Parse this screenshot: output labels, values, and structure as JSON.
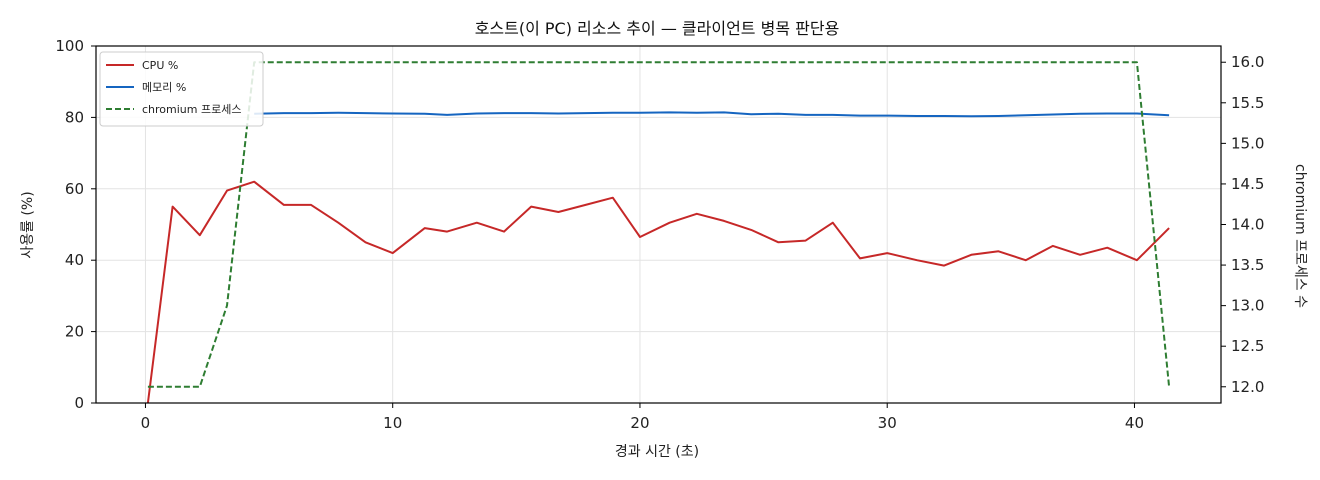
{
  "chart_data": {
    "type": "line",
    "title": "호스트(이 PC) 리소스 추이 — 클라이언트 병목 판단용",
    "xlabel": "경과 시간 (초)",
    "ylabel": "사용률 (%)",
    "y2label": "chromium 프로세스 수",
    "xlim": [
      -2,
      43.5
    ],
    "ylim": [
      0,
      100
    ],
    "y2lim": [
      11.8,
      16.2
    ],
    "xticks": [
      0,
      10,
      20,
      30,
      40
    ],
    "yticks": [
      0,
      20,
      40,
      60,
      80,
      100
    ],
    "y2ticks": [
      12.0,
      12.5,
      13.0,
      13.5,
      14.0,
      14.5,
      15.0,
      15.5,
      16.0
    ],
    "grid": true,
    "legend_position": "top-left",
    "series": [
      {
        "name": "CPU %",
        "axis": "left",
        "color": "#c62828",
        "dash": "solid",
        "x": [
          0.1,
          1.1,
          2.2,
          3.3,
          4.4,
          5.6,
          6.7,
          7.8,
          8.9,
          10.0,
          11.3,
          12.2,
          13.4,
          14.5,
          15.6,
          16.7,
          17.8,
          18.9,
          20.0,
          21.2,
          22.3,
          23.4,
          24.5,
          25.6,
          26.7,
          27.8,
          28.9,
          30.0,
          31.2,
          32.3,
          33.4,
          34.5,
          35.6,
          36.7,
          37.8,
          38.9,
          40.1,
          41.4
        ],
        "values": [
          0,
          55,
          47,
          59.5,
          62,
          55.5,
          55.5,
          50.5,
          45,
          42,
          49,
          48,
          50.5,
          48,
          55,
          53.5,
          55.5,
          57.5,
          46.5,
          50.5,
          53,
          51,
          48.5,
          45,
          45.5,
          50.5,
          40.5,
          42,
          40,
          38.5,
          41.5,
          42.5,
          40,
          44,
          41.5,
          43.5,
          40,
          49
        ]
      },
      {
        "name": "메모리 %",
        "axis": "left",
        "color": "#1565c0",
        "dash": "solid",
        "x": [
          4.4,
          5.6,
          6.7,
          7.8,
          8.9,
          10.0,
          11.3,
          12.2,
          13.4,
          14.5,
          15.6,
          16.7,
          17.8,
          18.9,
          20.0,
          21.2,
          22.3,
          23.4,
          24.5,
          25.6,
          26.7,
          27.8,
          28.9,
          30.0,
          31.2,
          32.3,
          33.4,
          34.5,
          35.6,
          36.7,
          37.8,
          38.9,
          40.1,
          41.4
        ],
        "values": [
          81,
          81.2,
          81.2,
          81.3,
          81.2,
          81.1,
          81,
          80.7,
          81.1,
          81.2,
          81.2,
          81.1,
          81.2,
          81.3,
          81.3,
          81.4,
          81.3,
          81.4,
          80.9,
          81,
          80.7,
          80.7,
          80.5,
          80.5,
          80.4,
          80.4,
          80.3,
          80.4,
          80.6,
          80.8,
          81,
          81.1,
          81.1,
          80.6
        ]
      },
      {
        "name": "chromium 프로세스",
        "axis": "right",
        "color": "#2e7d32",
        "dash": "dashed",
        "x": [
          0.1,
          2.2,
          3.3,
          4.4,
          40.1,
          41.4
        ],
        "values": [
          12,
          12,
          13,
          16,
          16,
          12
        ]
      }
    ]
  }
}
